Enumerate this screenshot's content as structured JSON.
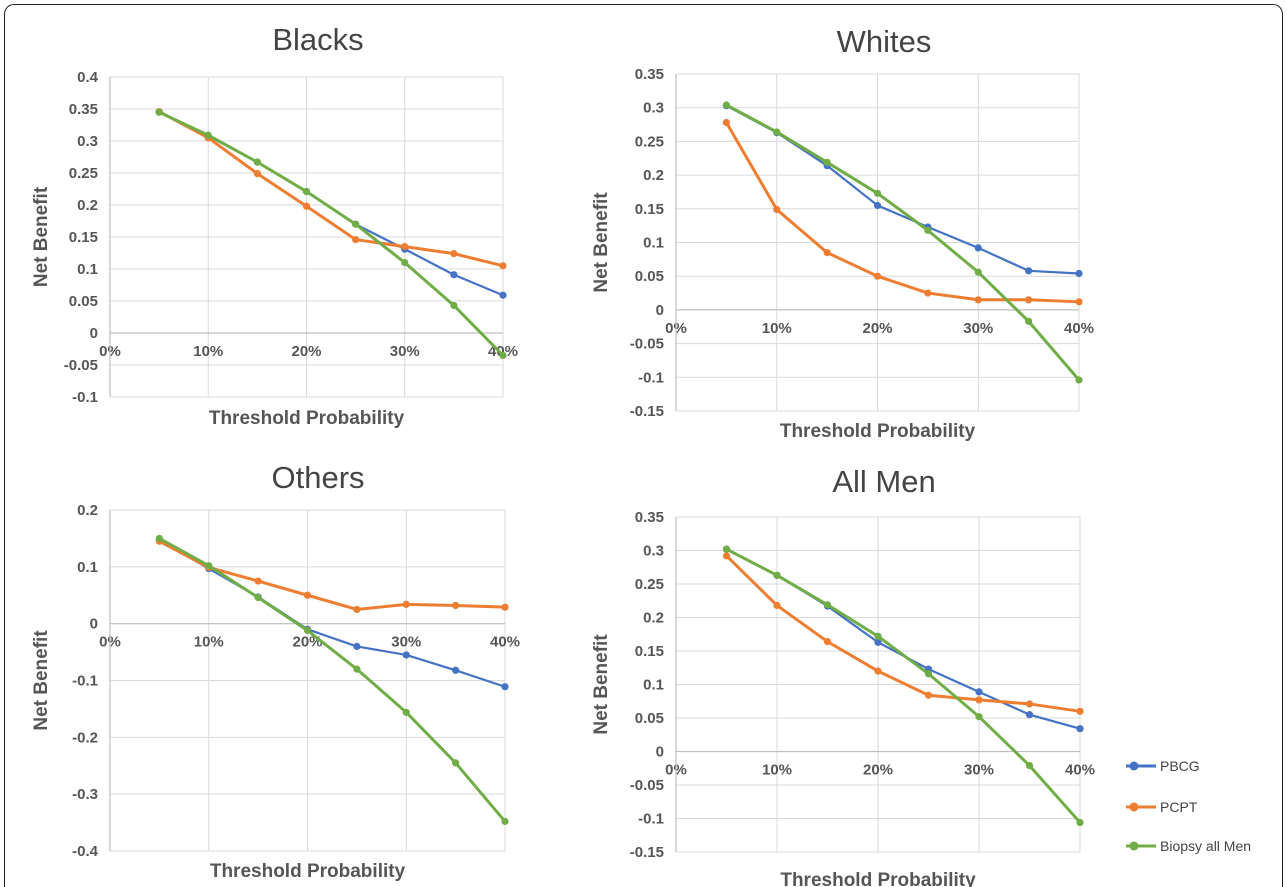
{
  "colors": {
    "PBCG": "#4472C4",
    "PCPT": "#ED7D31",
    "Biopsy": "#70AD47",
    "grid": "#D9D9D9",
    "axis": "#BFBFBF"
  },
  "legend": [
    {
      "name": "PBCG",
      "color": "#4472C4"
    },
    {
      "name": "PCPT",
      "color": "#ED7D31"
    },
    {
      "name": "Biopsy all Men",
      "color": "#70AD47"
    }
  ],
  "chart_data": [
    {
      "type": "line",
      "title": "Blacks",
      "xlabel": "Threshold  Probability",
      "ylabel": "Net Benefit",
      "x": [
        5,
        10,
        15,
        20,
        25,
        30,
        35,
        40
      ],
      "xticks": [
        "0%",
        "10%",
        "20%",
        "30%",
        "40%"
      ],
      "yticks": [
        "0.4",
        "0.35",
        "0.3",
        "0.25",
        "0.2",
        "0.15",
        "0.1",
        "0.05",
        "0",
        "-0.05",
        "-0.1"
      ],
      "ylim": [
        -0.1,
        0.4
      ],
      "series": [
        {
          "name": "PBCG",
          "values": [
            0.345,
            0.308,
            0.267,
            0.221,
            0.17,
            0.131,
            0.091,
            0.059
          ]
        },
        {
          "name": "PCPT",
          "values": [
            0.346,
            0.305,
            0.249,
            0.198,
            0.146,
            0.135,
            0.124,
            0.105
          ]
        },
        {
          "name": "Biopsy all Men",
          "values": [
            0.345,
            0.309,
            0.267,
            0.221,
            0.17,
            0.11,
            0.043,
            -0.035
          ]
        }
      ]
    },
    {
      "type": "line",
      "title": "Whites",
      "xlabel": "Threshold  Probability",
      "ylabel": "Net Benefit",
      "x": [
        5,
        10,
        15,
        20,
        25,
        30,
        35,
        40
      ],
      "xticks": [
        "0%",
        "10%",
        "20%",
        "30%",
        "40%"
      ],
      "yticks": [
        "0.35",
        "0.3",
        "0.25",
        "0.2",
        "0.15",
        "0.1",
        "0.05",
        "0",
        "-0.05",
        "-0.1",
        "-0.15"
      ],
      "ylim": [
        -0.15,
        0.35
      ],
      "series": [
        {
          "name": "PBCG",
          "values": [
            0.303,
            0.263,
            0.214,
            0.155,
            0.123,
            0.092,
            0.058,
            0.054
          ]
        },
        {
          "name": "PCPT",
          "values": [
            0.278,
            0.149,
            0.085,
            0.05,
            0.025,
            0.015,
            0.015,
            0.012
          ]
        },
        {
          "name": "Biopsy all Men",
          "values": [
            0.304,
            0.264,
            0.219,
            0.173,
            0.118,
            0.056,
            -0.017,
            -0.104
          ]
        }
      ]
    },
    {
      "type": "line",
      "title": "Others",
      "xlabel": "Threshold  Probability",
      "ylabel": "Net Benefit",
      "x": [
        5,
        10,
        15,
        20,
        25,
        30,
        35,
        40
      ],
      "xticks": [
        "0%",
        "10%",
        "20%",
        "30%",
        "40%"
      ],
      "yticks": [
        "0.2",
        "0.1",
        "0",
        "-0.1",
        "-0.2",
        "-0.3",
        "-0.4"
      ],
      "ylim": [
        -0.4,
        0.2
      ],
      "series": [
        {
          "name": "PBCG",
          "values": [
            0.147,
            0.097,
            0.047,
            -0.01,
            -0.04,
            -0.055,
            -0.082,
            -0.111
          ]
        },
        {
          "name": "PCPT",
          "values": [
            0.145,
            0.099,
            0.075,
            0.05,
            0.025,
            0.034,
            0.032,
            0.029
          ]
        },
        {
          "name": "Biopsy all Men",
          "values": [
            0.15,
            0.102,
            0.046,
            -0.012,
            -0.08,
            -0.156,
            -0.245,
            -0.348
          ]
        }
      ]
    },
    {
      "type": "line",
      "title": "All Men",
      "xlabel": "Threshold  Probability",
      "ylabel": "Net Benefit",
      "x": [
        5,
        10,
        15,
        20,
        25,
        30,
        35,
        40
      ],
      "xticks": [
        "0%",
        "10%",
        "20%",
        "30%",
        "40%"
      ],
      "yticks": [
        "0.35",
        "0.3",
        "0.25",
        "0.2",
        "0.15",
        "0.1",
        "0.05",
        "0",
        "-0.05",
        "-0.1",
        "-0.15"
      ],
      "ylim": [
        -0.15,
        0.35
      ],
      "series": [
        {
          "name": "PBCG",
          "values": [
            0.302,
            0.263,
            0.217,
            0.163,
            0.123,
            0.089,
            0.055,
            0.034
          ]
        },
        {
          "name": "PCPT",
          "values": [
            0.292,
            0.218,
            0.164,
            0.12,
            0.084,
            0.077,
            0.071,
            0.06
          ]
        },
        {
          "name": "Biopsy all Men",
          "values": [
            0.302,
            0.263,
            0.219,
            0.172,
            0.116,
            0.052,
            -0.021,
            -0.106
          ]
        }
      ]
    }
  ]
}
